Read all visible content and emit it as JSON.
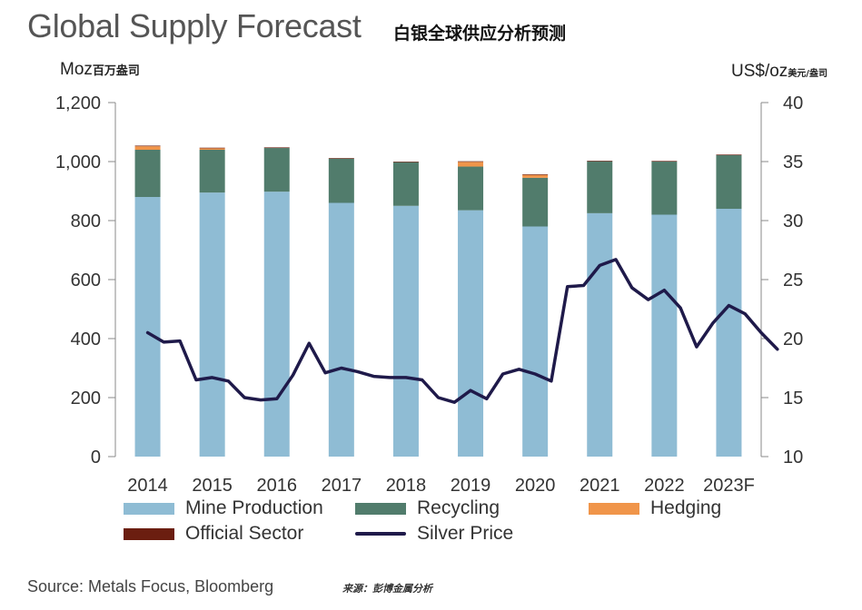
{
  "title": "Global Supply Forecast",
  "title_cn": "白银全球供应分析预测",
  "left_unit": "Moz",
  "left_unit_cn": "百万盎司",
  "right_unit": "US$/oz",
  "right_unit_cn": "美元/盎司",
  "source": "Source: Metals Focus, Bloomberg",
  "source_cn": "来源：彭博金属分析",
  "colors": {
    "mine": "#8fbcd4",
    "recycling": "#517c6c",
    "hedging": "#f0954a",
    "official": "#6b1e10",
    "price": "#1f1a4a",
    "axis": "#888888"
  },
  "chart_data": {
    "type": "bar",
    "stacked": true,
    "categories": [
      "2014",
      "2015",
      "2016",
      "2017",
      "2018",
      "2019",
      "2020",
      "2021",
      "2022",
      "2023F"
    ],
    "series": [
      {
        "name": "Mine Production",
        "values": [
          880,
          895,
          898,
          860,
          850,
          835,
          780,
          825,
          820,
          840
        ]
      },
      {
        "name": "Recycling",
        "values": [
          160,
          145,
          148,
          150,
          148,
          148,
          165,
          176,
          180,
          182
        ]
      },
      {
        "name": "Hedging",
        "values": [
          12,
          5,
          0,
          0,
          0,
          16,
          10,
          0,
          0,
          0
        ]
      },
      {
        "name": "Official Sector",
        "values": [
          2,
          2,
          2,
          2,
          2,
          2,
          2,
          2,
          2,
          2
        ]
      }
    ],
    "yleft": {
      "min": 0,
      "max": 1200,
      "ticks": [
        0,
        200,
        400,
        600,
        800,
        1000,
        1200
      ],
      "tick_labels": [
        "0",
        "200",
        "400",
        "600",
        "800",
        "1,000",
        "1,200"
      ]
    },
    "yright": {
      "min": 10,
      "max": 40,
      "ticks": [
        10,
        15,
        20,
        25,
        30,
        35,
        40
      ],
      "tick_labels": [
        "10",
        "15",
        "20",
        "25",
        "30",
        "35",
        "40"
      ]
    },
    "line": {
      "name": "Silver Price",
      "axis": "right",
      "points": [
        [
          0,
          20.5
        ],
        [
          0.25,
          19.7
        ],
        [
          0.5,
          19.8
        ],
        [
          0.75,
          16.5
        ],
        [
          1.0,
          16.7
        ],
        [
          1.25,
          16.4
        ],
        [
          1.5,
          15.0
        ],
        [
          1.75,
          14.8
        ],
        [
          2.0,
          14.9
        ],
        [
          2.25,
          16.9
        ],
        [
          2.5,
          19.6
        ],
        [
          2.75,
          17.1
        ],
        [
          3.0,
          17.5
        ],
        [
          3.25,
          17.2
        ],
        [
          3.5,
          16.8
        ],
        [
          3.75,
          16.7
        ],
        [
          4.0,
          16.7
        ],
        [
          4.25,
          16.5
        ],
        [
          4.5,
          15.0
        ],
        [
          4.75,
          14.6
        ],
        [
          5.0,
          15.6
        ],
        [
          5.25,
          14.9
        ],
        [
          5.5,
          17.0
        ],
        [
          5.75,
          17.4
        ],
        [
          6.0,
          17.0
        ],
        [
          6.25,
          16.4
        ],
        [
          6.5,
          24.4
        ],
        [
          6.75,
          24.5
        ],
        [
          7.0,
          26.2
        ],
        [
          7.25,
          26.7
        ],
        [
          7.5,
          24.3
        ],
        [
          7.75,
          23.3
        ],
        [
          8.0,
          24.1
        ],
        [
          8.25,
          22.6
        ],
        [
          8.5,
          19.3
        ],
        [
          8.75,
          21.3
        ],
        [
          9.0,
          22.8
        ],
        [
          9.25,
          22.1
        ],
        [
          9.5,
          20.5
        ],
        [
          9.75,
          19.1
        ]
      ]
    },
    "legend": [
      "Mine Production",
      "Recycling",
      "Hedging",
      "Official Sector",
      "Silver Price"
    ]
  }
}
